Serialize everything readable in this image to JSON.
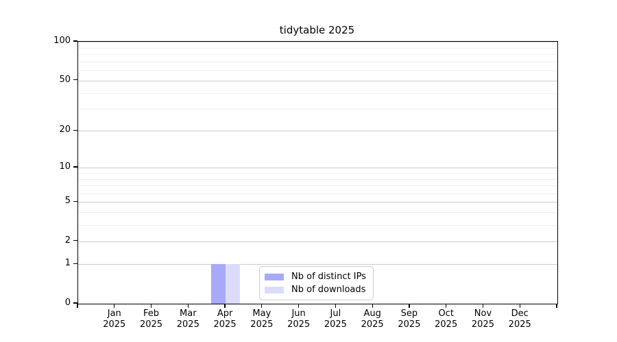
{
  "title": "tidytable 2025",
  "chart_data": {
    "type": "bar",
    "title": "tidytable 2025",
    "x_months": [
      "Jan",
      "Feb",
      "Mar",
      "Apr",
      "May",
      "Jun",
      "Jul",
      "Aug",
      "Sep",
      "Oct",
      "Nov",
      "Dec"
    ],
    "x_year": "2025",
    "y_scale": "log1p",
    "ylim": [
      0,
      100
    ],
    "y_ticks": [
      0,
      1,
      2,
      5,
      10,
      20,
      50,
      100
    ],
    "y_minor_gridlines": [
      3,
      4,
      6,
      7,
      8,
      9,
      30,
      40,
      60,
      70,
      80,
      90
    ],
    "grid": "horizontal",
    "legend_position": "bottom-center-inside",
    "series": [
      {
        "name": "Nb of distinct IPs",
        "color": "#a9a9fa",
        "values": [
          0,
          0,
          0,
          1,
          0,
          0,
          0,
          0,
          0,
          0,
          0,
          0
        ]
      },
      {
        "name": "Nb of downloads",
        "color": "#dcdcfa",
        "values": [
          0,
          0,
          0,
          1,
          0,
          0,
          0,
          0,
          0,
          0,
          0,
          0
        ]
      }
    ]
  },
  "colors": {
    "axis": "#000000",
    "major_grid": "#cccccc",
    "minor_grid": "#efefef",
    "legend_border": "#cccccc",
    "background": "#ffffff"
  }
}
